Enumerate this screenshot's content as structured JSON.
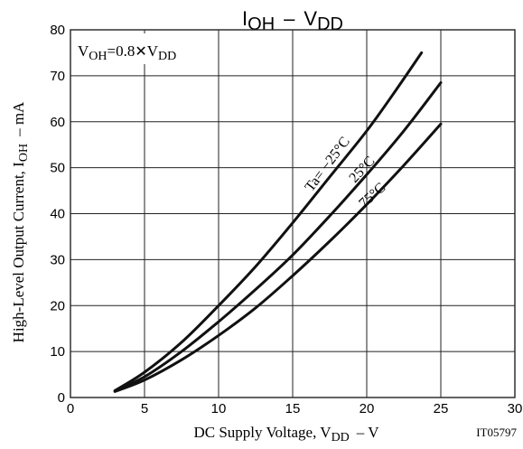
{
  "chart_data": {
    "type": "line",
    "title": "IOH − VDD",
    "title_parts": {
      "main1": "I",
      "sub1": "OH",
      "dash": "–",
      "main2": "V",
      "sub2": "DD"
    },
    "condition_label": {
      "main1": "V",
      "sub1": "OH",
      "mid": "=0.8",
      "times": "✕",
      "main2": "V",
      "sub2": "DD"
    },
    "xlabel": {
      "prefix": "DC Supply Voltage, V",
      "sub": "DD",
      "suffix": "–  V"
    },
    "ylabel": {
      "prefix": "High-Level Output Current, I",
      "sub": "OH",
      "suffix": "–  mA"
    },
    "figure_code": "IT05797",
    "xlim": [
      0,
      30
    ],
    "ylim": [
      0,
      80
    ],
    "x_ticks": [
      "0",
      "5",
      "10",
      "15",
      "20",
      "25",
      "30"
    ],
    "y_ticks": [
      "0",
      "10",
      "20",
      "30",
      "40",
      "50",
      "60",
      "70",
      "80"
    ],
    "grid": true,
    "series": [
      {
        "name": "Ta= −25°C",
        "x": [
          3,
          5,
          7.5,
          10,
          12.5,
          15,
          17.5,
          20,
          22,
          23.7
        ],
        "y": [
          1.5,
          5.5,
          12,
          20,
          28.5,
          38,
          48,
          58,
          67,
          75
        ]
      },
      {
        "name": "25°C",
        "x": [
          3,
          5,
          7.5,
          10,
          12.5,
          15,
          17.5,
          20,
          22.5,
          25
        ],
        "y": [
          1.4,
          4.5,
          10,
          16.5,
          23.5,
          31,
          39.5,
          48.5,
          58,
          68.5
        ]
      },
      {
        "name": "75°C",
        "x": [
          3,
          5,
          7.5,
          10,
          12.5,
          15,
          17.5,
          20,
          22.5,
          25
        ],
        "y": [
          1.3,
          3.8,
          8.2,
          13.5,
          19.5,
          26.5,
          34,
          42,
          50.5,
          59.5
        ]
      }
    ],
    "line_color": "#111111",
    "grid_color": "#222222"
  }
}
